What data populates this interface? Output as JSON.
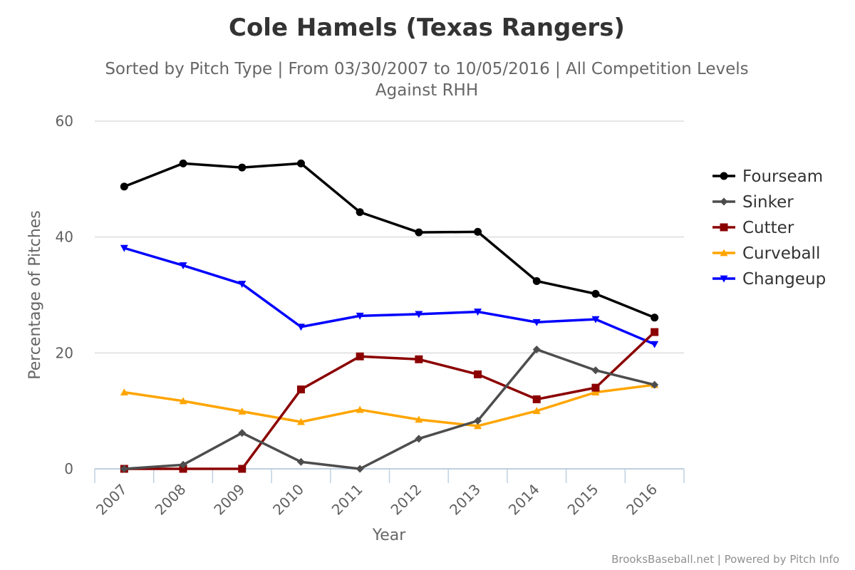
{
  "chart_data": {
    "type": "line",
    "title": "Cole Hamels (Texas Rangers)",
    "subtitle": [
      "Sorted by Pitch Type | From 03/30/2007 to 10/05/2016 | All Competition Levels",
      "Against RHH"
    ],
    "xlabel": "Year",
    "ylabel": "Percentage of Pitches",
    "x": [
      "2007",
      "2008",
      "2009",
      "2010",
      "2011",
      "2012",
      "2013",
      "2014",
      "2015",
      "2016"
    ],
    "y_ticks": [
      0,
      20,
      40,
      60
    ],
    "ylim": [
      0,
      60
    ],
    "grid": true,
    "legend_position": "right",
    "series": [
      {
        "name": "Fourseam",
        "color": "#000000",
        "marker": "circle",
        "values": [
          48.7,
          52.7,
          52.0,
          52.7,
          44.3,
          40.8,
          40.9,
          32.4,
          30.2,
          26.1
        ]
      },
      {
        "name": "Sinker",
        "color": "#4d4d4d",
        "marker": "diamond",
        "values": [
          0.0,
          0.7,
          6.2,
          1.2,
          0.0,
          5.2,
          8.3,
          20.6,
          17.0,
          14.5
        ]
      },
      {
        "name": "Cutter",
        "color": "#8b0000",
        "marker": "square",
        "values": [
          0.0,
          0.0,
          0.0,
          13.7,
          19.4,
          18.9,
          16.3,
          12.0,
          14.0,
          23.6
        ]
      },
      {
        "name": "Curveball",
        "color": "#ffa500",
        "marker": "triangle",
        "values": [
          13.2,
          11.7,
          9.9,
          8.1,
          10.2,
          8.5,
          7.4,
          10.0,
          13.2,
          14.5
        ]
      },
      {
        "name": "Changeup",
        "color": "#0000ff",
        "marker": "triangle-down",
        "values": [
          38.1,
          35.1,
          31.9,
          24.5,
          26.4,
          26.7,
          27.1,
          25.3,
          25.8,
          21.5
        ]
      }
    ]
  },
  "credits": "BrooksBaseball.net | Powered by Pitch Info"
}
